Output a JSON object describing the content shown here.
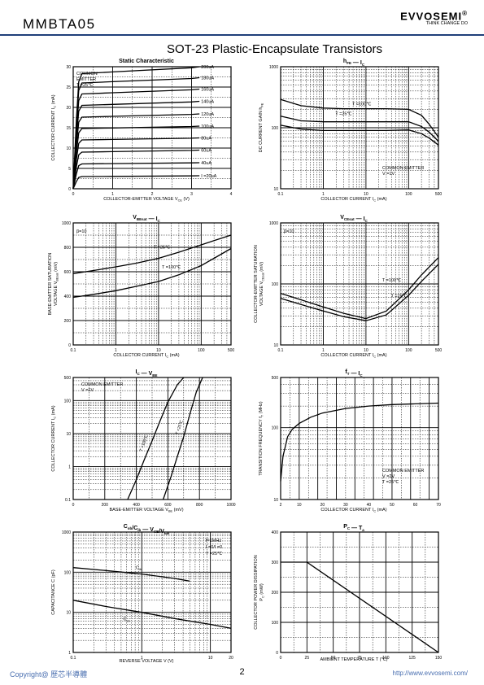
{
  "header": {
    "part_number": "MMBTA05",
    "logo": "EVVOSEMI",
    "logo_mark": "®",
    "tagline": "THINK CHANGE DO",
    "doc_title": "SOT-23 Plastic-Encapsulate Transistors"
  },
  "footer": {
    "copyright": "Copyright@ 歷芯半導體",
    "page": "2",
    "url": "http://www.evvosemi.com/"
  },
  "chart_data": [
    {
      "id": "static",
      "type": "line",
      "title": "Static Characteristic",
      "xlabel": "COLLECTOR-EMITTER VOLTAGE    V",
      "xlabel_sub": "CE",
      "xlabel_unit": "(V)",
      "ylabel": "COLLECTOR CURRENT    I",
      "ylabel_sub": "C",
      "ylabel_unit": "(mA)",
      "xlim": [
        0,
        4
      ],
      "ylim": [
        0,
        30
      ],
      "xticks": [
        0,
        1,
        2,
        3,
        4
      ],
      "yticks": [
        0,
        5,
        10,
        15,
        20,
        25,
        30
      ],
      "notes": [
        "COMMON",
        "EMITTER",
        "T =25℃"
      ],
      "curves": [
        {
          "label": "200uA",
          "sat": 28.3,
          "end": 30.0
        },
        {
          "label": "180uA",
          "sat": 26.0,
          "end": 27.3
        },
        {
          "label": "160uA",
          "sat": 23.3,
          "end": 24.5
        },
        {
          "label": "140uA",
          "sat": 20.5,
          "end": 21.5
        },
        {
          "label": "120uA",
          "sat": 17.6,
          "end": 18.4
        },
        {
          "label": "100uA",
          "sat": 14.8,
          "end": 15.4
        },
        {
          "label": "80uA",
          "sat": 12.0,
          "end": 12.5
        },
        {
          "label": "60uA",
          "sat": 9.0,
          "end": 9.5
        },
        {
          "label": "40uA",
          "sat": 6.1,
          "end": 6.4
        },
        {
          "label": "I =20uA",
          "sat": 3.0,
          "end": 3.2
        }
      ]
    },
    {
      "id": "hfe",
      "type": "line",
      "title": "h",
      "title_sub": "FE",
      "title_x": "I",
      "title_x_sub": "C",
      "xlabel": "COLLECTOR CURRENT    I",
      "xlabel_sub": "C",
      "xlabel_unit": "(mA)",
      "ylabel": "DC CURRENT GAIN    h",
      "ylabel_sub": "FE",
      "xscale": "log",
      "yscale": "log",
      "xlim": [
        0.1,
        500
      ],
      "ylim": [
        10,
        1000
      ],
      "xticks": [
        0.1,
        1,
        10,
        100,
        500
      ],
      "yticks": [
        10,
        100,
        1000
      ],
      "notes": [
        "COMMON EMITTER",
        "V =1V"
      ],
      "series": [
        {
          "name": "T =100℃",
          "x": [
            0.1,
            0.3,
            1,
            3,
            10,
            30,
            100,
            200,
            300,
            500
          ],
          "y": [
            290,
            230,
            210,
            205,
            205,
            205,
            200,
            160,
            115,
            70
          ]
        },
        {
          "name": "T =25℃",
          "x": [
            0.1,
            0.3,
            1,
            3,
            10,
            30,
            100,
            200,
            300,
            500
          ],
          "y": [
            155,
            130,
            125,
            125,
            125,
            125,
            125,
            105,
            85,
            60
          ]
        },
        {
          "name": "",
          "x": [
            0.1,
            0.3,
            1,
            3,
            10,
            30,
            100,
            200,
            300,
            500
          ],
          "y": [
            110,
            95,
            90,
            90,
            90,
            90,
            92,
            80,
            68,
            52
          ]
        }
      ]
    },
    {
      "id": "vbesat",
      "type": "line",
      "title": "V",
      "title_sub": "BEsat",
      "title_x": "I",
      "title_x_sub": "C",
      "xlabel": "COLLECTOR CURRENT    I",
      "xlabel_sub": "C",
      "xlabel_unit": "(mA)",
      "ylabel": "BASE-EMITTER SATURATION",
      "ylabel2": "VOLTAGE  V",
      "ylabel2_sub": "BEsat",
      "ylabel2_unit": "(mV)",
      "xscale": "log",
      "xlim": [
        0.1,
        500
      ],
      "ylim": [
        0,
        1000
      ],
      "xticks": [
        0.1,
        1,
        10,
        100,
        500
      ],
      "yticks": [
        0,
        200,
        400,
        600,
        800,
        1000
      ],
      "notes": [
        "β=10"
      ],
      "series": [
        {
          "name": "T =25℃",
          "x": [
            0.1,
            0.3,
            1,
            3,
            10,
            30,
            100,
            200,
            500
          ],
          "y": [
            585,
            610,
            640,
            670,
            710,
            760,
            820,
            855,
            900
          ]
        },
        {
          "name": "T =100℃",
          "x": [
            0.1,
            0.3,
            1,
            3,
            10,
            30,
            100,
            200,
            500
          ],
          "y": [
            390,
            415,
            445,
            480,
            520,
            575,
            650,
            710,
            790
          ]
        }
      ]
    },
    {
      "id": "vcesat",
      "type": "line",
      "title": "V",
      "title_sub": "CEsat",
      "title_x": "I",
      "title_x_sub": "C",
      "xlabel": "COLLECTOR CURRENT    I",
      "xlabel_sub": "C",
      "xlabel_unit": "(mA)",
      "ylabel": "COLLECTOR-EMITTER SATURATION",
      "ylabel2": "VOLTAGE  V",
      "ylabel2_sub": "CEsat",
      "ylabel2_unit": "(mV)",
      "xscale": "log",
      "yscale": "log",
      "xlim": [
        0.1,
        500
      ],
      "ylim": [
        10,
        1000
      ],
      "xticks": [
        0.1,
        1,
        10,
        100,
        500
      ],
      "yticks": [
        10,
        100,
        1000
      ],
      "notes": [
        "β=10"
      ],
      "series": [
        {
          "name": "T =100℃",
          "x": [
            0.1,
            0.3,
            1,
            3,
            10,
            30,
            100,
            200,
            500
          ],
          "y": [
            70,
            55,
            42,
            33,
            27,
            36,
            80,
            140,
            270
          ]
        },
        {
          "name": "T =25℃",
          "x": [
            0.1,
            0.3,
            1,
            3,
            10,
            30,
            100,
            200,
            500
          ],
          "y": [
            58,
            46,
            36,
            29,
            25,
            31,
            65,
            110,
            210
          ]
        }
      ]
    },
    {
      "id": "icvbe",
      "type": "line",
      "title": "I",
      "title_sub": "C",
      "title_x": "V",
      "title_x_sub": "BE",
      "xlabel": "BASE-EMITTER VOLTAGE   V",
      "xlabel_sub": "BE",
      "xlabel_unit": "(mV)",
      "ylabel": "COLLECTOR CURRENT    I",
      "ylabel_sub": "C",
      "ylabel_unit": "(mA)",
      "yscale": "log",
      "xlim": [
        0,
        1000
      ],
      "ylim": [
        0.1,
        500
      ],
      "xticks": [
        0,
        200,
        400,
        600,
        800,
        1000
      ],
      "yticks": [
        0.1,
        1,
        10,
        100,
        500
      ],
      "notes": [
        "COMMON EMITTER",
        "V =1V"
      ],
      "series": [
        {
          "name": "T =100℃",
          "x": [
            345,
            400,
            450,
            500,
            550,
            600,
            660,
            700
          ],
          "y": [
            0.1,
            0.4,
            1.6,
            6,
            24,
            90,
            300,
            500
          ]
        },
        {
          "name": "T =25℃",
          "x": [
            570,
            620,
            660,
            700,
            740,
            780,
            820
          ],
          "y": [
            0.1,
            0.5,
            2,
            8,
            40,
            180,
            500
          ]
        }
      ]
    },
    {
      "id": "ft",
      "type": "line",
      "title": "f",
      "title_sub": "T",
      "title_x": "I",
      "title_x_sub": "C",
      "xlabel": "COLLECTOR CURRENT    I",
      "xlabel_sub": "C",
      "xlabel_unit": "(mA)",
      "ylabel": "TRANSITION FREQUENCY    f",
      "ylabel_sub": "T",
      "ylabel_unit": "(MHz)",
      "yscale": "log",
      "xlim": [
        2,
        70
      ],
      "ylim": [
        10,
        500
      ],
      "xticks": [
        2,
        10,
        20,
        30,
        40,
        50,
        60,
        70
      ],
      "yticks": [
        10,
        100,
        500
      ],
      "notes": [
        "COMMON EMITTER",
        "V =2V",
        "T =25℃"
      ],
      "series": [
        {
          "name": "",
          "x": [
            2,
            3,
            5,
            7,
            10,
            15,
            20,
            30,
            40,
            50,
            60,
            70
          ],
          "y": [
            18,
            40,
            75,
            95,
            115,
            140,
            160,
            185,
            200,
            210,
            215,
            220
          ]
        }
      ]
    },
    {
      "id": "cap",
      "type": "line",
      "title": "C",
      "title_sub": "ob",
      "title_mid": "/C",
      "title_mid_sub": "ib",
      "title_x": "V",
      "title_x_sub": "CB",
      "title_x2": "/V",
      "title_x2_sub": "EB",
      "xlabel": "REVERSE  VOLTAGE   V   (V)",
      "ylabel": "CAPACITANCE   C   (pF)",
      "xscale": "log",
      "yscale": "log",
      "xlim": [
        0.1,
        20
      ],
      "ylim": [
        1,
        1000
      ],
      "xticks": [
        0.1,
        1,
        10,
        20
      ],
      "yticks": [
        1,
        10,
        100,
        1000
      ],
      "notes": [
        "f=1MHz",
        "I =0/I =0",
        "T =25℃"
      ],
      "series": [
        {
          "name": "C",
          "name_sub": "ib",
          "x": [
            0.1,
            0.3,
            1,
            3,
            5
          ],
          "y": [
            130,
            110,
            90,
            70,
            60
          ]
        },
        {
          "name": "C",
          "name_sub": "ob",
          "x": [
            0.1,
            0.3,
            1,
            3,
            10,
            20
          ],
          "y": [
            20,
            14,
            10,
            7,
            5,
            4
          ]
        }
      ]
    },
    {
      "id": "pc",
      "type": "line",
      "title": "P",
      "title_sub": "C",
      "title_x": "T",
      "title_x_sub": "a",
      "xlabel": "AMBIENT TEMPERATURE    T     (℃)",
      "ylabel": "COLLECTOR POWER DISSIPATION",
      "ylabel2": "P",
      "ylabel2_sub": "C",
      "ylabel2_unit": "(mW)",
      "xlim": [
        0,
        150
      ],
      "ylim": [
        0,
        400
      ],
      "xticks": [
        0,
        25,
        50,
        75,
        100,
        125,
        150
      ],
      "yticks": [
        0,
        100,
        200,
        300,
        400
      ],
      "series": [
        {
          "name": "",
          "x": [
            0,
            25,
            150
          ],
          "y": [
            300,
            300,
            0
          ]
        }
      ]
    }
  ]
}
